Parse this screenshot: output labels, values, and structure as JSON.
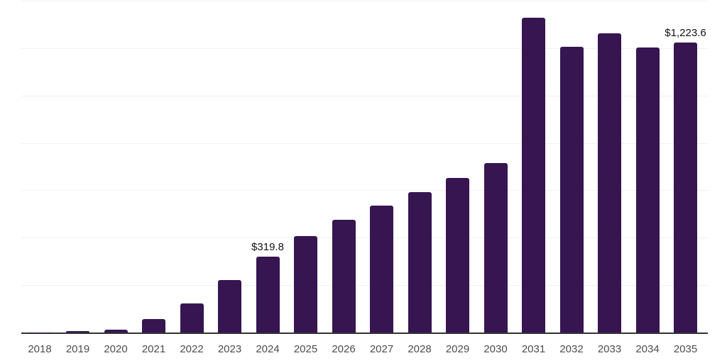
{
  "chart_data": {
    "type": "bar",
    "title": "",
    "xlabel": "",
    "ylabel": "",
    "categories": [
      "2018",
      "2019",
      "2020",
      "2021",
      "2022",
      "2023",
      "2024",
      "2025",
      "2026",
      "2027",
      "2028",
      "2029",
      "2030",
      "2031",
      "2032",
      "2033",
      "2034",
      "2035"
    ],
    "values": [
      0.5,
      5,
      13,
      58,
      124,
      221,
      319.8,
      408,
      476,
      537,
      592,
      652,
      715,
      1328,
      1207,
      1262,
      1203,
      1223.6
    ],
    "annotations": [
      {
        "category": "2024",
        "text": "$319.8"
      },
      {
        "category": "2035",
        "text": "$1,223.6"
      }
    ],
    "ylim": [
      0,
      1400
    ],
    "grid_interval": 200,
    "grid": true,
    "legend": false,
    "y_tick_labels_shown": false,
    "colors": {
      "bar": "#361551",
      "axis": "#333333",
      "gridline": "#f1f1f1",
      "tick_label": "#4d4d4d",
      "annotation": "#111111",
      "background": "#ffffff"
    }
  }
}
